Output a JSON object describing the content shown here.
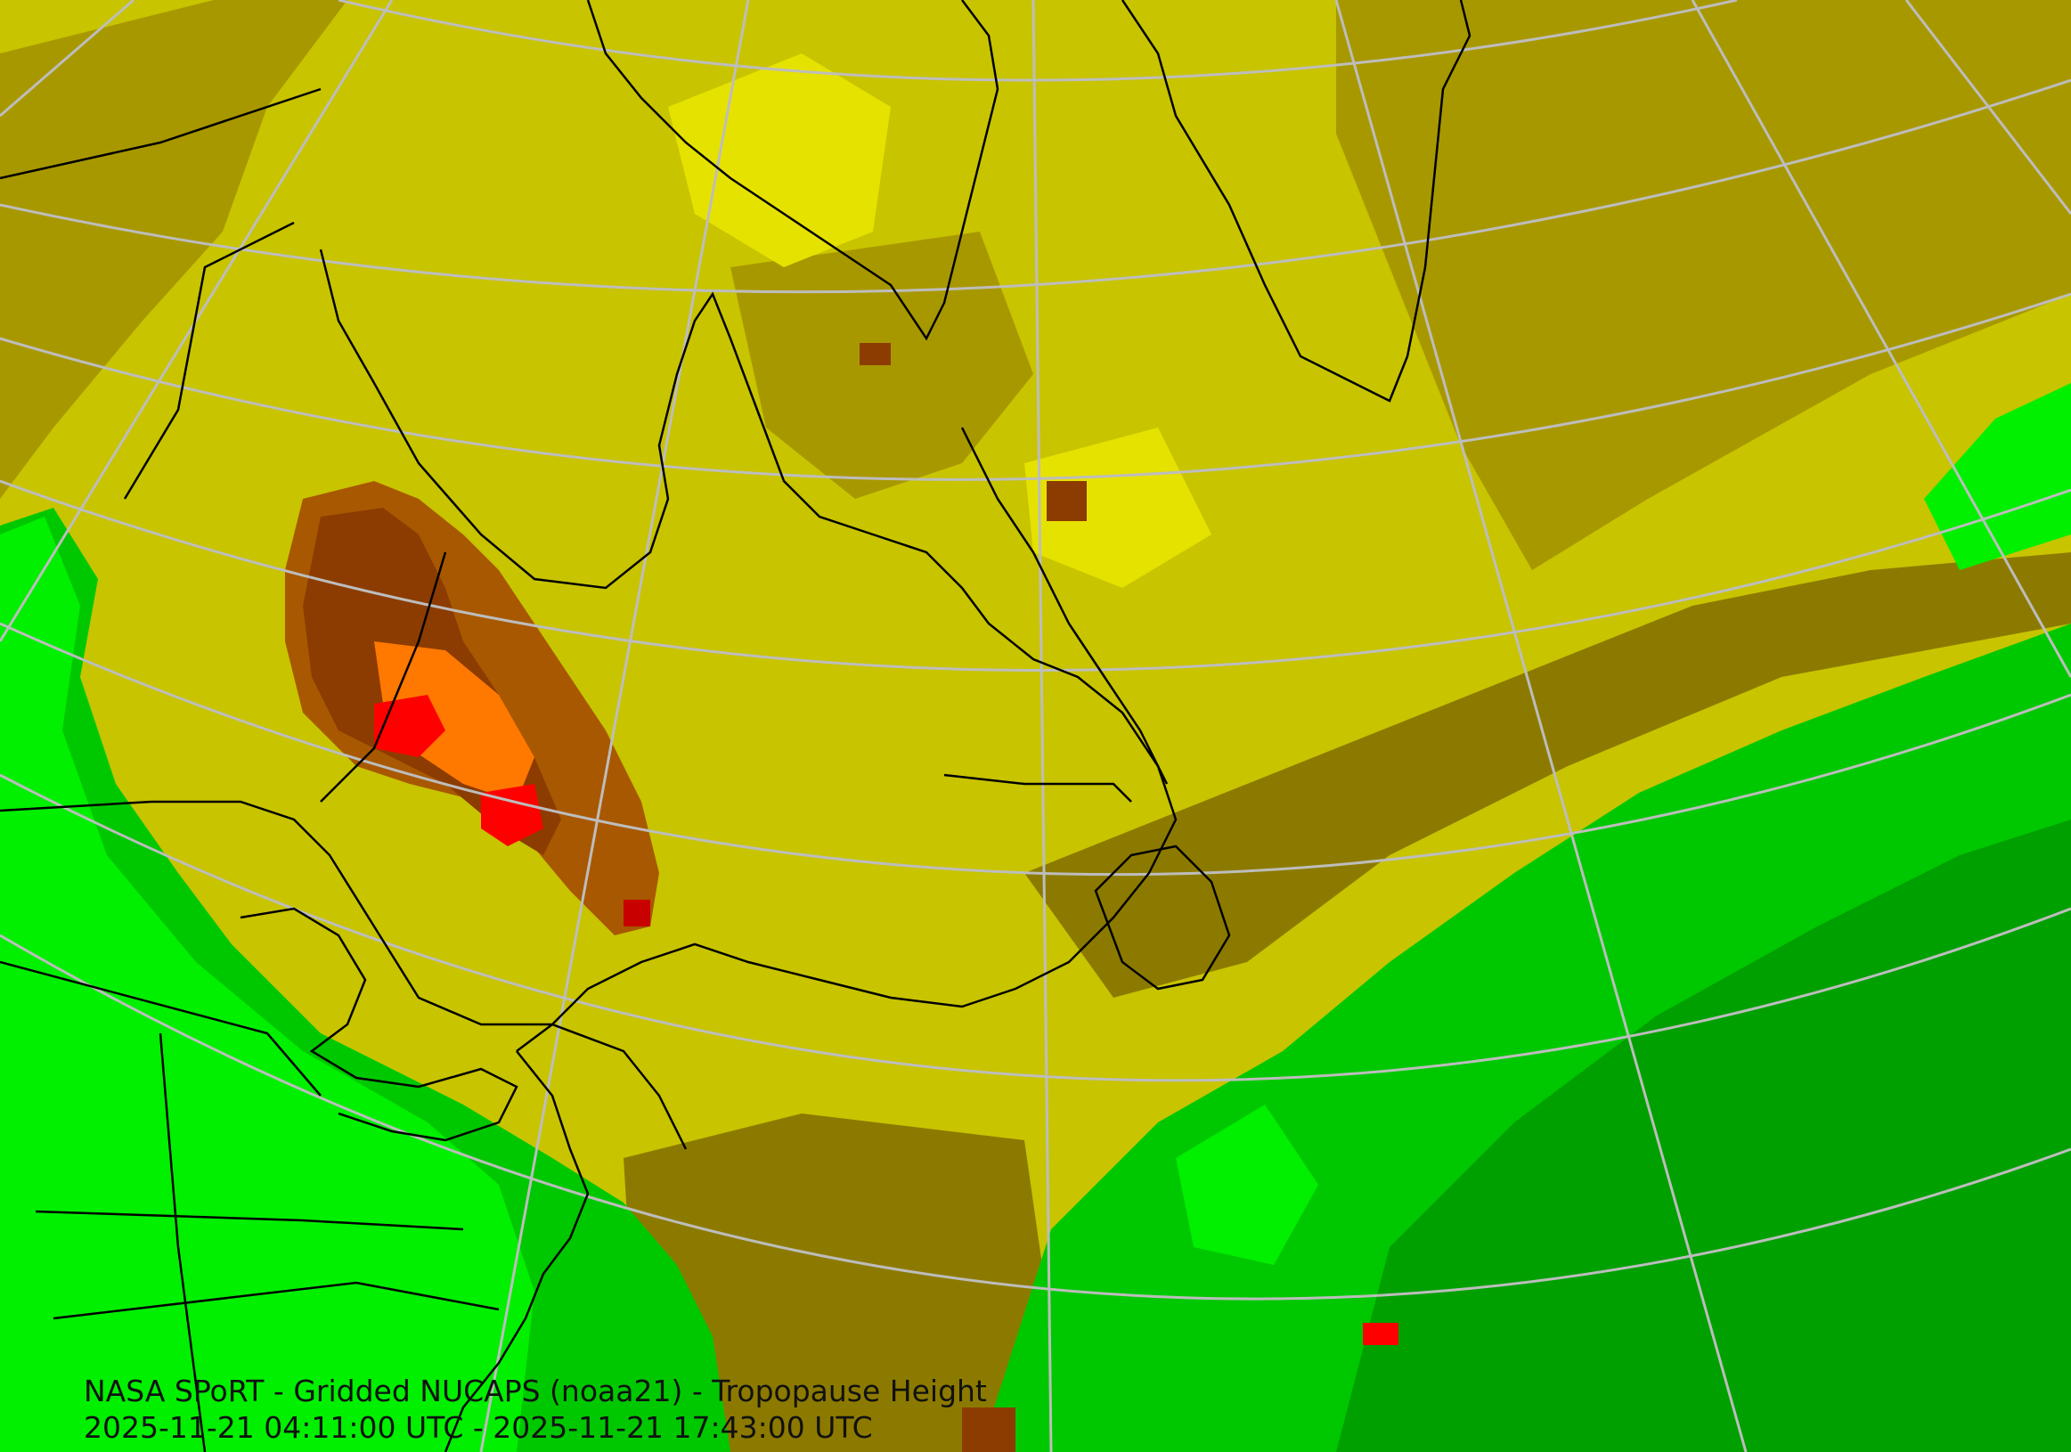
{
  "map": {
    "product_title": "NASA SPoRT - Gridded NUCAPS (noaa21) - Tropopause Height",
    "time_range": "2025-11-21 04:11:00 UTC - 2025-11-21 17:43:00 UTC",
    "colors": {
      "level_green_dark": "#00a000",
      "level_green": "#00c800",
      "level_green_bright": "#00f000",
      "level_olive_dark": "#8c7a00",
      "level_olive": "#a89800",
      "level_olive_light": "#c8c400",
      "level_yellow": "#e6e200",
      "level_yellow_bright": "#f6f200",
      "level_brown": "#8c3c00",
      "level_brown_light": "#a85800",
      "level_orange": "#ff7800",
      "level_red_dark": "#c80000",
      "level_red": "#ff0000",
      "coastline": "#000000",
      "graticule": "#bdbdbd"
    }
  }
}
